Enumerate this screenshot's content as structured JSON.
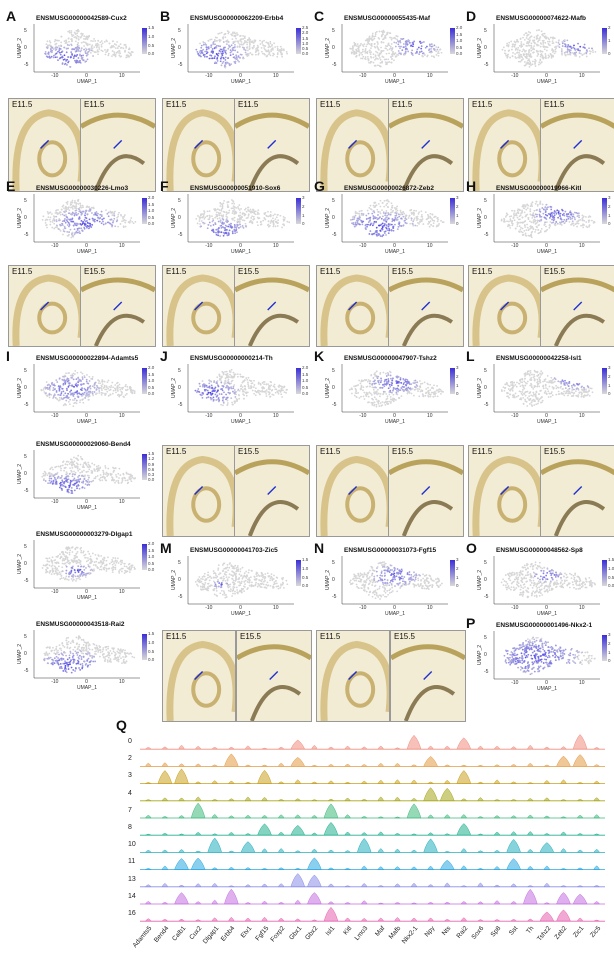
{
  "panels": {
    "A": {
      "letter": "A",
      "gene": "ENSMUSG00000042589-Cux2",
      "scale": [
        "1.5",
        "1.0",
        "0.5",
        "0.0"
      ],
      "stages": [
        "E11.5",
        "E11.5"
      ]
    },
    "B": {
      "letter": "B",
      "gene": "ENSMUSG00000062209-Erbb4",
      "scale": [
        "2.5",
        "2.0",
        "1.5",
        "1.0",
        "0.5",
        "0.0"
      ],
      "stages": [
        "E11.5",
        "E11.5"
      ]
    },
    "C": {
      "letter": "C",
      "gene": "ENSMUSG00000055435-Maf",
      "scale": [
        "2.0",
        "1.5",
        "1.0",
        "0.5",
        "0.0"
      ],
      "stages": [
        "E11.5",
        "E11.5"
      ]
    },
    "D": {
      "letter": "D",
      "gene": "ENSMUSG00000074622-Mafb",
      "scale": [
        "2",
        "1",
        "0"
      ],
      "stages": [
        "E11.5",
        "E11.5"
      ]
    },
    "E": {
      "letter": "E",
      "gene": "ENSMUSG00000030226-Lmo3",
      "scale": [
        "2.0",
        "1.5",
        "1.0",
        "0.5",
        "0.0"
      ],
      "stages": [
        "E11.5",
        "E15.5"
      ]
    },
    "F": {
      "letter": "F",
      "gene": "ENSMUSG00000051910-Sox6",
      "scale": [
        "3",
        "2",
        "1",
        "0"
      ],
      "stages": [
        "E11.5",
        "E15.5"
      ]
    },
    "G": {
      "letter": "G",
      "gene": "ENSMUSG00000026872-Zeb2",
      "scale": [
        "3",
        "2",
        "1",
        "0"
      ],
      "stages": [
        "E11.5",
        "E15.5"
      ]
    },
    "H": {
      "letter": "H",
      "gene": "ENSMUSG00000019966-Kitl",
      "scale": [
        "3",
        "2",
        "1",
        "0"
      ],
      "stages": [
        "E11.5",
        "E15.5"
      ]
    },
    "I": {
      "letter": "I",
      "gene": "ENSMUSG00000022894-Adamts5",
      "scale": [
        "2.0",
        "1.5",
        "1.0",
        "0.5",
        "0.0"
      ]
    },
    "I2": {
      "gene": "ENSMUSG00000029060-Bend4",
      "scale": [
        "1.5",
        "1.2",
        "0.9",
        "0.6",
        "0.3",
        "0.0"
      ]
    },
    "I3": {
      "gene": "ENSMUSG00000003279-Dlgap1",
      "scale": [
        "2.0",
        "1.5",
        "1.0",
        "0.5",
        "0.0"
      ]
    },
    "I4": {
      "gene": "ENSMUSG00000043518-Rai2",
      "scale": [
        "1.5",
        "1.0",
        "0.5",
        "0.0"
      ]
    },
    "J": {
      "letter": "J",
      "gene": "ENSMUSG00000000214-Th",
      "scale": [
        "2.0",
        "1.5",
        "1.0",
        "0.5",
        "0.0"
      ],
      "stages": [
        "E11.5",
        "E15.5"
      ]
    },
    "K": {
      "letter": "K",
      "gene": "ENSMUSG00000047907-Tshz2",
      "scale": [
        "3",
        "2",
        "1",
        "0"
      ],
      "stages": [
        "E11.5",
        "E15.5"
      ]
    },
    "L": {
      "letter": "L",
      "gene": "ENSMUSG00000042258-Isl1",
      "scale": [
        "3",
        "2",
        "1",
        "0"
      ],
      "stages": [
        "E11.5",
        "E15.5"
      ]
    },
    "M": {
      "letter": "M",
      "gene": "ENSMUSG00000041703-Zic5",
      "scale": [
        "1.5",
        "1.0",
        "0.5",
        "0.0"
      ],
      "stages": [
        "E11.5",
        "E15.5"
      ]
    },
    "N": {
      "letter": "N",
      "gene": "ENSMUSG00000031073-Fgf15",
      "scale": [
        "3",
        "2",
        "1",
        "0"
      ],
      "stages": [
        "E11.5",
        "E15.5"
      ]
    },
    "O": {
      "letter": "O",
      "gene": "ENSMUSG00000048562-Sp8",
      "scale": [
        "1.5",
        "1.0",
        "0.5",
        "0.0"
      ]
    },
    "P": {
      "letter": "P",
      "gene": "ENSMUSG00000001496-Nkx2-1",
      "scale": [
        "3",
        "2",
        "1",
        "0"
      ]
    }
  },
  "axes": {
    "x": "UMAP_1",
    "y": "UMAP_2",
    "xticks": [
      "-10",
      "0",
      "10"
    ],
    "yticks": [
      "5",
      "0",
      "-5"
    ]
  },
  "colors": {
    "high": "#3b2fd6",
    "low": "#d9d9d9",
    "ish_bg": "#f3ecd4",
    "tissue": "#d8c48a"
  },
  "violin": {
    "letter": "Q",
    "clusters": [
      "0",
      "2",
      "3",
      "4",
      "7",
      "8",
      "10",
      "11",
      "13",
      "14",
      "16"
    ],
    "cluster_colors": [
      "#f08c7e",
      "#e39a43",
      "#c9a021",
      "#a6a619",
      "#3fb97c",
      "#21b08e",
      "#22afc0",
      "#2aa7e0",
      "#8b8ee8",
      "#c46fe0",
      "#e562b0"
    ],
    "genes": [
      "Adamts5",
      "Bend4",
      "Calb1",
      "Cux2",
      "Dlgap1",
      "Erbb4",
      "Etv1",
      "Fgf15",
      "Foxp2",
      "Gbx1",
      "Gbx2",
      "Isl1",
      "Kitl",
      "Lmo3",
      "Maf",
      "Mafb",
      "Nkx2-1",
      "Npy",
      "Nts",
      "Rai2",
      "Sox6",
      "Sp8",
      "Sst",
      "Th",
      "Tshz2",
      "Zeb2",
      "Zic1",
      "Zic5"
    ]
  }
}
